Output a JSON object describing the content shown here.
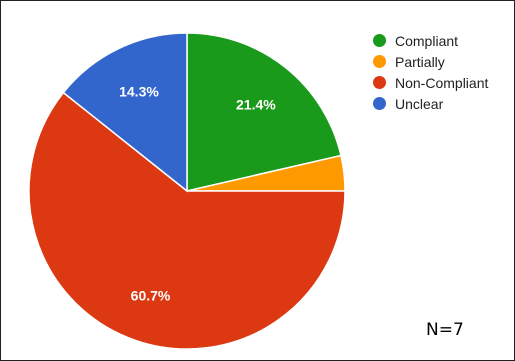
{
  "chart_data": {
    "type": "pie",
    "slices": [
      {
        "label": "Compliant",
        "value": 21.4,
        "value_label": "21.4%",
        "color": "#1a9a1a"
      },
      {
        "label": "Partially",
        "value": 3.6,
        "value_label": "",
        "color": "#ff9900"
      },
      {
        "label": "Non-Compliant",
        "value": 60.7,
        "value_label": "60.7%",
        "color": "#dc3912"
      },
      {
        "label": "Unclear",
        "value": 14.3,
        "value_label": "14.3%",
        "color": "#3366cc"
      }
    ],
    "start": "12 o'clock",
    "direction": "clockwise",
    "legend_position": "top-right"
  },
  "note": "N=7"
}
